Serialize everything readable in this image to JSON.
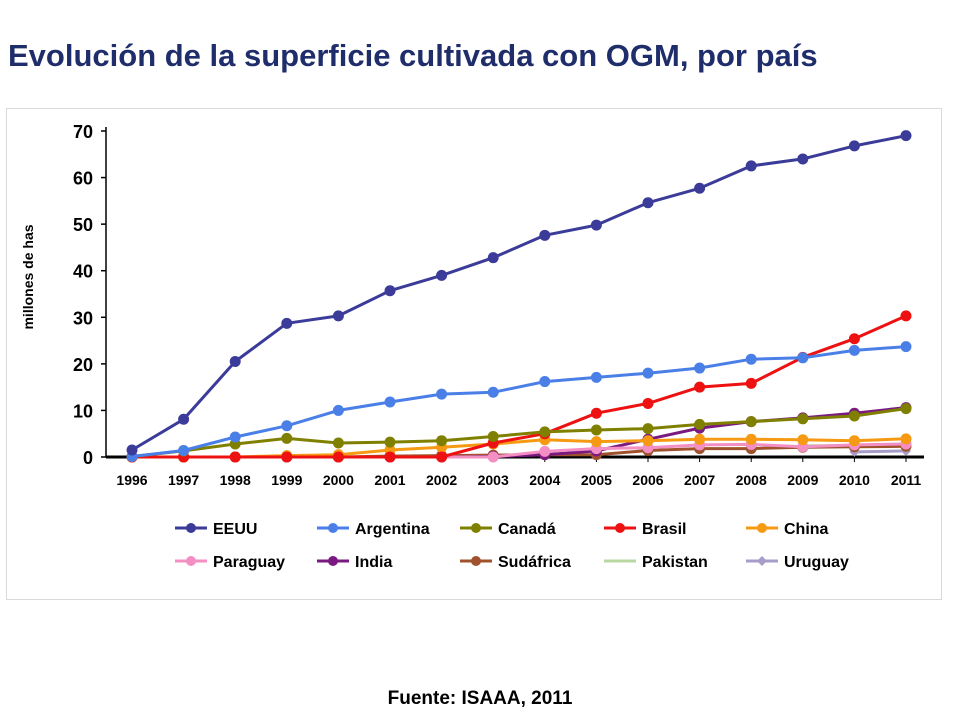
{
  "title": "Evolución de la superficie cultivada con OGM, por país",
  "source": "Fuente: ISAAA, 2011",
  "chart_data": {
    "type": "line",
    "title": "",
    "xlabel": "",
    "ylabel": "millones de has",
    "ylim": [
      0,
      70
    ],
    "yticks": [
      0,
      10,
      20,
      30,
      40,
      50,
      60,
      70
    ],
    "grid": false,
    "legend_position": "bottom",
    "categories": [
      "1996",
      "1997",
      "1998",
      "1999",
      "2000",
      "2001",
      "2002",
      "2003",
      "2004",
      "2005",
      "2006",
      "2007",
      "2008",
      "2009",
      "2010",
      "2011"
    ],
    "series": [
      {
        "name": "EEUU",
        "color": "#3b3b9a",
        "marker": "circle",
        "values": [
          1.5,
          8.1,
          20.5,
          28.7,
          30.3,
          35.7,
          39.0,
          42.8,
          47.6,
          49.8,
          54.6,
          57.7,
          62.5,
          64.0,
          66.8,
          69.0
        ]
      },
      {
        "name": "Argentina",
        "color": "#4a7fe8",
        "marker": "circle",
        "values": [
          0.1,
          1.4,
          4.3,
          6.7,
          10.0,
          11.8,
          13.5,
          13.9,
          16.2,
          17.1,
          18.0,
          19.1,
          21.0,
          21.3,
          22.9,
          23.7
        ]
      },
      {
        "name": "Canadá",
        "color": "#808000",
        "marker": "circle",
        "values": [
          0.1,
          1.3,
          2.8,
          4.0,
          3.0,
          3.2,
          3.5,
          4.4,
          5.4,
          5.8,
          6.1,
          7.0,
          7.6,
          8.2,
          8.8,
          10.4
        ]
      },
      {
        "name": "Brasil",
        "color": "#ee1111",
        "marker": "circle",
        "values": [
          0,
          0,
          0,
          0,
          0,
          0,
          0,
          3.0,
          5.0,
          9.4,
          11.5,
          15.0,
          15.8,
          21.4,
          25.4,
          30.3
        ]
      },
      {
        "name": "China",
        "color": "#f59a12",
        "marker": "circle",
        "values": [
          0,
          0,
          0,
          0.3,
          0.5,
          1.5,
          2.1,
          2.8,
          3.7,
          3.3,
          3.5,
          3.8,
          3.8,
          3.7,
          3.5,
          3.9
        ]
      },
      {
        "name": "Paraguay",
        "color": "#f48fc4",
        "marker": "circle",
        "values": [
          0,
          0,
          0,
          0,
          0,
          0,
          0,
          0,
          1.2,
          1.8,
          2.0,
          2.6,
          2.7,
          2.2,
          2.6,
          2.8
        ]
      },
      {
        "name": "India",
        "color": "#7a1a80",
        "marker": "circle",
        "values": [
          0,
          0,
          0,
          0,
          0,
          0,
          0,
          0.1,
          0.5,
          1.3,
          3.8,
          6.2,
          7.6,
          8.4,
          9.4,
          10.6
        ]
      },
      {
        "name": "Sudáfrica",
        "color": "#a0522d",
        "marker": "circle",
        "values": [
          0,
          0,
          0,
          0,
          0,
          0.2,
          0.3,
          0.4,
          0.5,
          0.5,
          1.4,
          1.8,
          1.8,
          2.1,
          2.2,
          2.3
        ]
      },
      {
        "name": "Pakistan",
        "color": "#b8d8a0",
        "marker": "none",
        "values": [
          null,
          null,
          null,
          null,
          null,
          null,
          null,
          null,
          null,
          null,
          null,
          null,
          null,
          2.4,
          2.4,
          2.6
        ]
      },
      {
        "name": "Uruguay",
        "color": "#a89cc8",
        "marker": "diamond",
        "values": [
          null,
          null,
          null,
          null,
          null,
          null,
          null,
          null,
          null,
          null,
          null,
          null,
          null,
          null,
          1.1,
          1.3
        ]
      }
    ]
  }
}
